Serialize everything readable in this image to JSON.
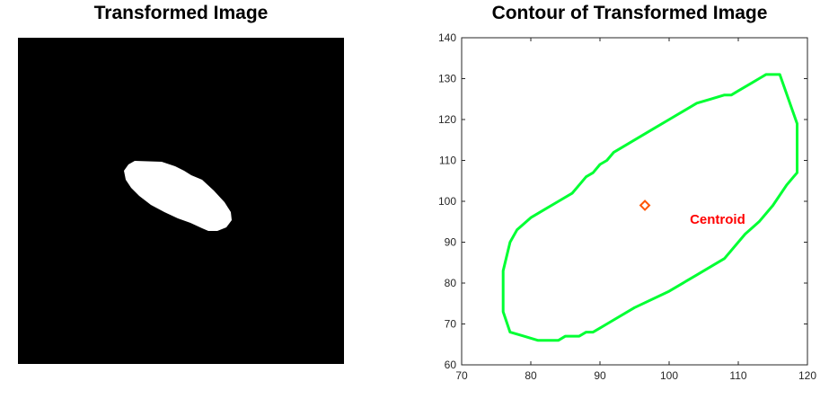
{
  "left_panel": {
    "title": "Transformed Image",
    "image": "binary-mask-ellipse",
    "colors": {
      "background": "#000000",
      "shape": "#ffffff"
    }
  },
  "right_panel": {
    "title": "Contour of Transformed Image"
  },
  "chart_data": {
    "type": "line",
    "title": "Contour of Transformed Image",
    "xlabel": "",
    "ylabel": "",
    "xlim": [
      70,
      120
    ],
    "ylim": [
      60,
      140
    ],
    "x_ticks": [
      70,
      80,
      90,
      100,
      110,
      120
    ],
    "y_ticks": [
      60,
      70,
      80,
      90,
      100,
      110,
      120,
      130,
      140
    ],
    "grid": false,
    "series": [
      {
        "color": "#00ff33",
        "x": [
          77,
          79,
          81,
          84,
          85,
          87,
          88,
          89,
          90,
          91,
          95,
          100,
          104,
          108,
          111,
          113,
          115,
          117,
          118,
          118.5,
          118.5,
          116,
          115,
          114,
          113,
          112,
          111,
          110,
          109,
          108,
          106,
          104,
          102,
          100,
          98,
          96,
          94,
          92,
          91,
          90,
          89,
          88,
          87,
          86,
          84,
          82,
          80,
          78,
          77,
          76,
          76
        ],
        "y": [
          68,
          67,
          66,
          66,
          67,
          67,
          68,
          68,
          69,
          70,
          74,
          78,
          82,
          86,
          92,
          95,
          99,
          104,
          106,
          107,
          119,
          131,
          131,
          131,
          130,
          129,
          128,
          127,
          126,
          126,
          125,
          124,
          122,
          120,
          118,
          116,
          114,
          112,
          110,
          109,
          107,
          106,
          104,
          102,
          100,
          98,
          96,
          93,
          90,
          83,
          73
        ]
      },
      {
        "color": "#ff5500",
        "x": [
          96.5
        ],
        "y": [
          99
        ]
      }
    ],
    "annotations": [
      {
        "text": "Centroid",
        "x": 103,
        "y": 94.5,
        "color": "#ff0000"
      }
    ]
  }
}
